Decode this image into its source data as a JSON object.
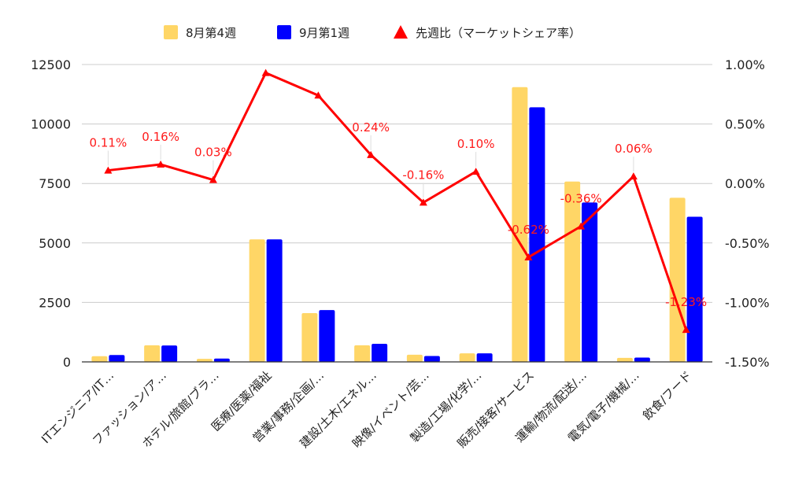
{
  "chart_data": {
    "type": "bar",
    "categories": [
      "ITエンジニア/IT…",
      "ファッション/ア…",
      "ホテル/旅館/ブラ…",
      "医療/医薬/福祉",
      "営業/事務/企画/…",
      "建設/土木/エネル…",
      "映像/イベント/芸…",
      "製造/工場/化学/…",
      "販売/接客/サービス",
      "運輸/物流/配送/…",
      "電気/電子/機械/…",
      "飲食/フード"
    ],
    "series": [
      {
        "name": "8月第4週",
        "color": "#FFD666",
        "axis": "left",
        "values": [
          240,
          700,
          130,
          5150,
          2050,
          700,
          300,
          360,
          11550,
          7580,
          170,
          6900
        ]
      },
      {
        "name": "9月第1週",
        "color": "#0000FF",
        "axis": "left",
        "values": [
          290,
          690,
          140,
          5150,
          2180,
          760,
          250,
          360,
          10700,
          6700,
          180,
          6100
        ]
      },
      {
        "name": "先週比（マーケットシェア率）",
        "color": "#FF0000",
        "type": "line",
        "axis": "right",
        "values": [
          0.11,
          0.16,
          0.03,
          0.93,
          0.74,
          0.24,
          -0.16,
          0.1,
          -0.62,
          -0.36,
          0.06,
          -1.23
        ],
        "labels": [
          "0.11%",
          "0.16%",
          "0.03%",
          "",
          "",
          "0.24%",
          "-0.16%",
          "0.10%",
          "-0.62%",
          "-0.36%",
          "0.06%",
          "-1.23%"
        ]
      }
    ],
    "y_left": {
      "min": 0,
      "max": 12500,
      "ticks": [
        "0",
        "2500",
        "5000",
        "7500",
        "10000",
        "12500"
      ]
    },
    "y_right": {
      "min": -1.5,
      "max": 1.0,
      "ticks": [
        "-1.50%",
        "-1.00%",
        "-0.50%",
        "0.00%",
        "0.50%",
        "1.00%"
      ]
    },
    "legend": "top-center",
    "grid": true
  }
}
